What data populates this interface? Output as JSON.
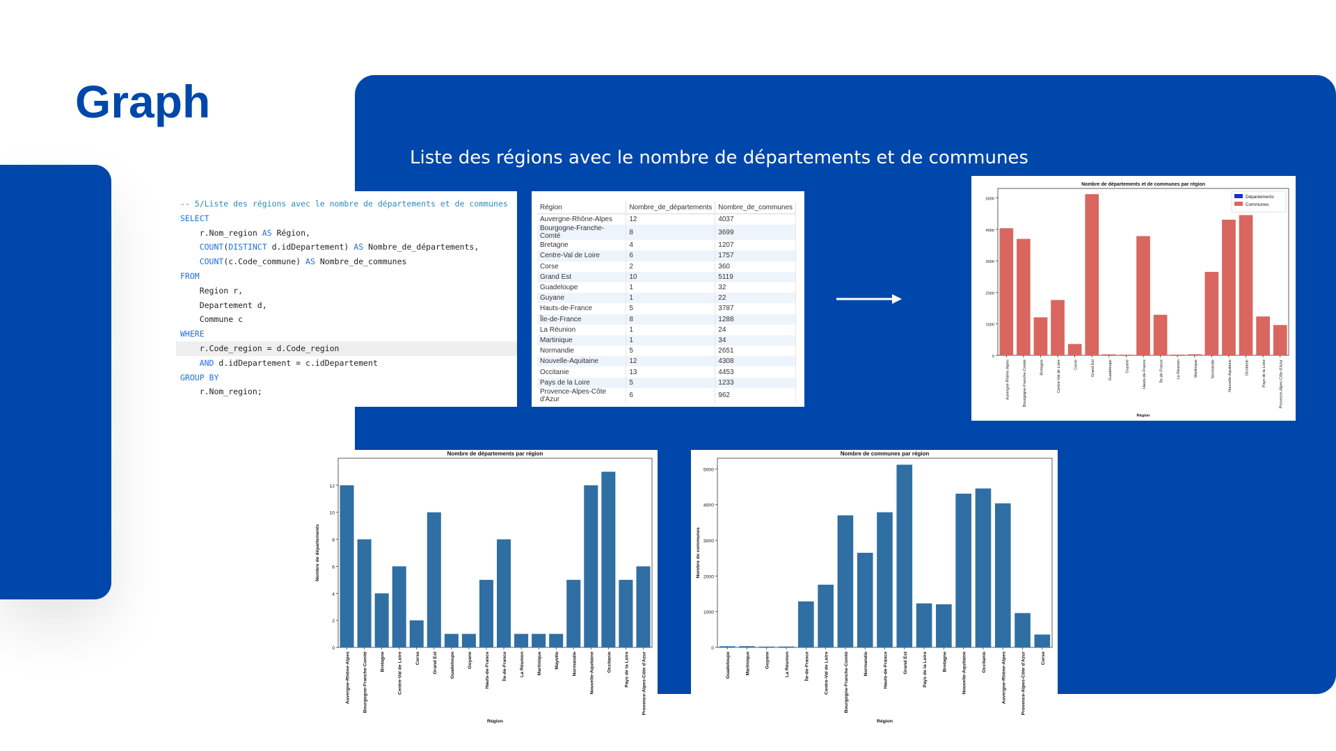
{
  "slide": {
    "title": "Graph",
    "subtitle": "Liste des régions avec le nombre de départements et de communes"
  },
  "colors": {
    "brand": "#0047ab",
    "bar_blue": "#2f6fa3",
    "bar_red": "#d9665f",
    "legend_blue": "#1a2fcf"
  },
  "sql": {
    "lines": [
      {
        "parts": [
          {
            "t": "-- 5/Liste des régions avec le nombre de départements et de communes",
            "c": "comment"
          }
        ]
      },
      {
        "parts": [
          {
            "t": "SELECT",
            "c": "kw"
          }
        ]
      },
      {
        "parts": [
          {
            "t": "    r.Nom_region ",
            "c": "plain"
          },
          {
            "t": "AS",
            "c": "kw"
          },
          {
            "t": " Région,",
            "c": "plain"
          }
        ]
      },
      {
        "parts": [
          {
            "t": "    ",
            "c": "plain"
          },
          {
            "t": "COUNT",
            "c": "kw"
          },
          {
            "t": "(",
            "c": "plain"
          },
          {
            "t": "DISTINCT",
            "c": "kw"
          },
          {
            "t": " d.idDepartement) ",
            "c": "plain"
          },
          {
            "t": "AS",
            "c": "kw"
          },
          {
            "t": " Nombre_de_départements,",
            "c": "plain"
          }
        ]
      },
      {
        "parts": [
          {
            "t": "    ",
            "c": "plain"
          },
          {
            "t": "COUNT",
            "c": "kw"
          },
          {
            "t": "(c.Code_commune) ",
            "c": "plain"
          },
          {
            "t": "AS",
            "c": "kw"
          },
          {
            "t": " Nombre_de_communes",
            "c": "plain"
          }
        ]
      },
      {
        "parts": [
          {
            "t": "FROM",
            "c": "kw"
          }
        ]
      },
      {
        "parts": [
          {
            "t": "    Region r,",
            "c": "plain"
          }
        ]
      },
      {
        "parts": [
          {
            "t": "    Departement d,",
            "c": "plain"
          }
        ]
      },
      {
        "parts": [
          {
            "t": "    Commune c",
            "c": "plain"
          }
        ]
      },
      {
        "parts": [
          {
            "t": "WHERE",
            "c": "kw"
          }
        ]
      },
      {
        "hl": true,
        "parts": [
          {
            "t": "    r.Code_region = d.Code_region",
            "c": "plain"
          }
        ]
      },
      {
        "parts": [
          {
            "t": "    ",
            "c": "plain"
          },
          {
            "t": "AND",
            "c": "kw"
          },
          {
            "t": " d.idDepartement = c.idDepartement",
            "c": "plain"
          }
        ]
      },
      {
        "parts": [
          {
            "t": "GROUP BY",
            "c": "kw"
          }
        ]
      },
      {
        "parts": [
          {
            "t": "    r.Nom_region;",
            "c": "plain"
          }
        ]
      }
    ]
  },
  "result_table": {
    "headers": [
      "Région",
      "Nombre_de_départements",
      "Nombre_de_communes"
    ],
    "rows": [
      [
        "Auvergne-Rhône-Alpes",
        "12",
        "4037"
      ],
      [
        "Bourgogne-Franche-Comté",
        "8",
        "3699"
      ],
      [
        "Bretagne",
        "4",
        "1207"
      ],
      [
        "Centre-Val de Loire",
        "6",
        "1757"
      ],
      [
        "Corse",
        "2",
        "360"
      ],
      [
        "Grand Est",
        "10",
        "5119"
      ],
      [
        "Guadeloupe",
        "1",
        "32"
      ],
      [
        "Guyane",
        "1",
        "22"
      ],
      [
        "Hauts-de-France",
        "5",
        "3787"
      ],
      [
        "Île-de-France",
        "8",
        "1288"
      ],
      [
        "La Réunion",
        "1",
        "24"
      ],
      [
        "Martinique",
        "1",
        "34"
      ],
      [
        "Normandie",
        "5",
        "2651"
      ],
      [
        "Nouvelle-Aquitaine",
        "12",
        "4308"
      ],
      [
        "Occitanie",
        "13",
        "4453"
      ],
      [
        "Pays de la Loire",
        "5",
        "1233"
      ],
      [
        "Provence-Alpes-Côte d'Azur",
        "6",
        "962"
      ]
    ]
  },
  "chart_data": [
    {
      "id": "chart1",
      "type": "bar",
      "title": "Nombre de départements par région",
      "xlabel": "Région",
      "ylabel": "Nombre de départements",
      "ylim": [
        0,
        14
      ],
      "yticks": [
        0,
        2,
        4,
        6,
        8,
        10,
        12
      ],
      "color": "#2f6fa3",
      "categories": [
        "Auvergne-Rhône-Alpes",
        "Bourgogne-Franche-Comté",
        "Bretagne",
        "Centre-Val de Loire",
        "Corse",
        "Grand Est",
        "Guadeloupe",
        "Guyane",
        "Hauts-de-France",
        "Île-de-France",
        "La Réunion",
        "Martinique",
        "Mayotte",
        "Normandie",
        "Nouvelle-Aquitaine",
        "Occitanie",
        "Pays de la Loire",
        "Provence-Alpes-Côte d'Azur"
      ],
      "values": [
        12,
        8,
        4,
        6,
        2,
        10,
        1,
        1,
        5,
        8,
        1,
        1,
        1,
        5,
        12,
        13,
        5,
        6
      ]
    },
    {
      "id": "chart2",
      "type": "bar",
      "title": "Nombre de communes par région",
      "xlabel": "Région",
      "ylabel": "Nombre de communes",
      "ylim": [
        0,
        5300
      ],
      "yticks": [
        0,
        1000,
        2000,
        3000,
        4000,
        5000
      ],
      "color": "#2f6fa3",
      "categories": [
        "Guadeloupe",
        "Martinique",
        "Guyane",
        "La Réunion",
        "Île-de-France",
        "Centre-Val de Loire",
        "Bourgogne-Franche-Comté",
        "Normandie",
        "Hauts-de-France",
        "Grand Est",
        "Pays de la Loire",
        "Bretagne",
        "Nouvelle-Aquitaine",
        "Occitanie",
        "Auvergne-Rhône-Alpes",
        "Provence-Alpes-Côte d'Azur",
        "Corse"
      ],
      "values": [
        32,
        34,
        22,
        24,
        1288,
        1757,
        3699,
        2651,
        3787,
        5119,
        1233,
        1207,
        4308,
        4453,
        4037,
        962,
        360
      ]
    },
    {
      "id": "chart3",
      "type": "bar",
      "title": "Nombre de départements et de communes par région",
      "xlabel": "Région",
      "ylabel": "",
      "ylim": [
        0,
        5300
      ],
      "yticks": [
        0,
        1000,
        2000,
        3000,
        4000,
        5000
      ],
      "legend": "top-right",
      "categories": [
        "Auvergne-Rhône-Alpes",
        "Bourgogne-Franche-Comté",
        "Bretagne",
        "Centre-Val de Loire",
        "Corse",
        "Grand Est",
        "Guadeloupe",
        "Guyane",
        "Hauts-de-France",
        "Île-de-France",
        "La Réunion",
        "Martinique",
        "Normandie",
        "Nouvelle-Aquitaine",
        "Occitanie",
        "Pays de la Loire",
        "Provence-Alpes-Côte d'Azur"
      ],
      "series": [
        {
          "name": "Départements",
          "color": "#1a2fcf",
          "values": [
            12,
            8,
            4,
            6,
            2,
            10,
            1,
            1,
            5,
            8,
            1,
            1,
            5,
            12,
            13,
            5,
            6
          ]
        },
        {
          "name": "Communes",
          "color": "#d9665f",
          "values": [
            4037,
            3699,
            1207,
            1757,
            360,
            5119,
            32,
            22,
            3787,
            1288,
            24,
            34,
            2651,
            4308,
            4453,
            1233,
            962
          ]
        }
      ]
    }
  ]
}
